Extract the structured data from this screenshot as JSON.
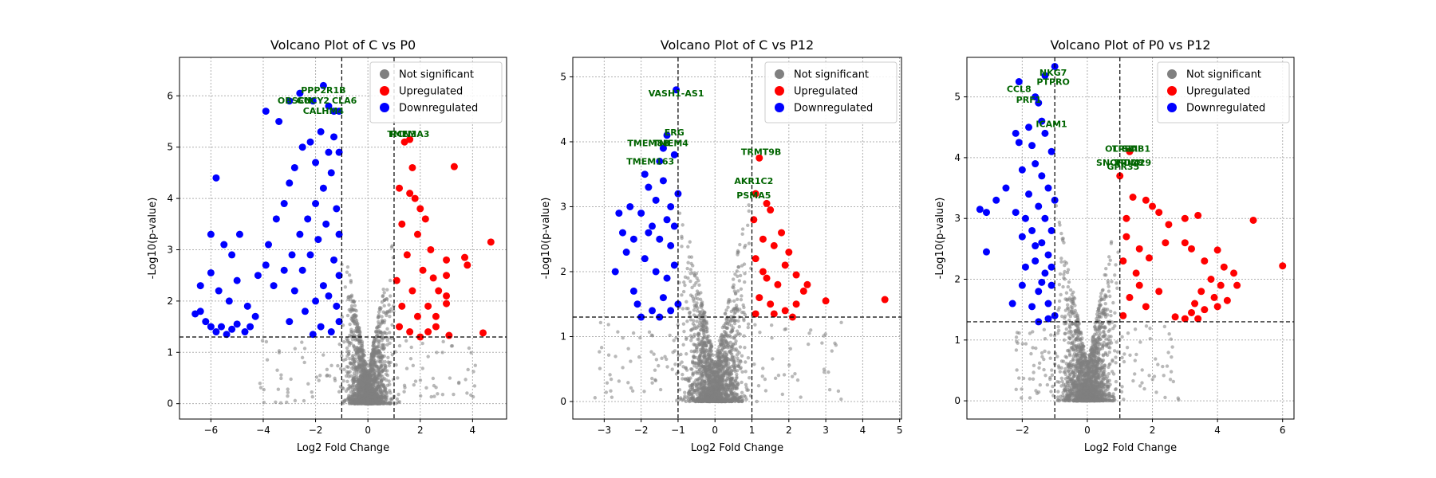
{
  "colors": {
    "not_significant": "#808080",
    "upregulated": "#ff0000",
    "downregulated": "#0000ff",
    "gene_label": "#006400"
  },
  "chart_data": [
    {
      "type": "scatter",
      "title": "Volcano Plot of C vs P0",
      "xlabel": "Log2 Fold Change",
      "ylabel": "-Log10(p-value)",
      "xlim": [
        -7.2,
        5.3
      ],
      "ylim": [
        -0.3,
        6.75
      ],
      "xticks": [
        -6,
        -4,
        -2,
        0,
        2,
        4
      ],
      "yticks": [
        0,
        1,
        2,
        3,
        4,
        5,
        6
      ],
      "grid": true,
      "legend": "top-right",
      "legend_entries": [
        "Not significant",
        "Upregulated",
        "Downregulated"
      ],
      "fc_thresholds": [
        -1,
        1
      ],
      "p_threshold": 1.3,
      "background_spread": {
        "xmin": -4.2,
        "xmax": 4.2,
        "ymax": 5.8
      },
      "upregulated": [
        [
          1.4,
          5.1
        ],
        [
          1.6,
          5.15
        ],
        [
          3.3,
          4.62
        ],
        [
          1.7,
          4.6
        ],
        [
          4.7,
          3.15
        ],
        [
          3.7,
          2.85
        ],
        [
          3.8,
          2.7
        ],
        [
          3.0,
          2.8
        ],
        [
          3.0,
          2.5
        ],
        [
          2.7,
          2.2
        ],
        [
          3.0,
          2.1
        ],
        [
          3.0,
          1.95
        ],
        [
          2.6,
          1.7
        ],
        [
          2.6,
          1.5
        ],
        [
          4.4,
          1.38
        ],
        [
          3.1,
          1.33
        ],
        [
          2.3,
          1.4
        ],
        [
          1.2,
          4.2
        ],
        [
          1.6,
          4.1
        ],
        [
          1.8,
          4.0
        ],
        [
          2.0,
          3.8
        ],
        [
          2.2,
          3.6
        ],
        [
          1.3,
          3.5
        ],
        [
          1.9,
          3.3
        ],
        [
          2.4,
          3.0
        ],
        [
          1.5,
          2.9
        ],
        [
          2.1,
          2.6
        ],
        [
          1.1,
          2.4
        ],
        [
          1.7,
          2.2
        ],
        [
          2.5,
          2.45
        ],
        [
          1.3,
          1.9
        ],
        [
          1.9,
          1.7
        ],
        [
          2.3,
          1.9
        ],
        [
          1.2,
          1.5
        ],
        [
          1.6,
          1.4
        ],
        [
          2.0,
          1.3
        ]
      ],
      "downregulated": [
        [
          -6.6,
          1.75
        ],
        [
          -6.4,
          1.8
        ],
        [
          -6.2,
          1.6
        ],
        [
          -6.0,
          1.5
        ],
        [
          -5.8,
          1.4
        ],
        [
          -5.6,
          1.5
        ],
        [
          -5.4,
          1.35
        ],
        [
          -5.2,
          1.45
        ],
        [
          -5.0,
          1.55
        ],
        [
          -4.7,
          1.4
        ],
        [
          -4.5,
          1.5
        ],
        [
          -6.4,
          2.3
        ],
        [
          -6.0,
          2.55
        ],
        [
          -5.7,
          2.2
        ],
        [
          -5.3,
          2.0
        ],
        [
          -5.0,
          2.4
        ],
        [
          -4.6,
          1.9
        ],
        [
          -4.3,
          1.7
        ],
        [
          -6.0,
          3.3
        ],
        [
          -5.5,
          3.1
        ],
        [
          -5.2,
          2.9
        ],
        [
          -4.9,
          3.3
        ],
        [
          -5.8,
          4.4
        ],
        [
          -4.2,
          2.5
        ],
        [
          -3.9,
          2.7
        ],
        [
          -3.9,
          5.7
        ],
        [
          -3.4,
          5.5
        ],
        [
          -3.0,
          5.9
        ],
        [
          -2.6,
          6.05
        ],
        [
          -2.1,
          5.9
        ],
        [
          -1.7,
          6.2
        ],
        [
          -1.5,
          5.8
        ],
        [
          -1.3,
          5.7
        ],
        [
          -1.1,
          5.7
        ],
        [
          -3.8,
          3.1
        ],
        [
          -3.5,
          3.6
        ],
        [
          -3.2,
          3.9
        ],
        [
          -3.0,
          4.3
        ],
        [
          -2.8,
          4.6
        ],
        [
          -2.5,
          5.0
        ],
        [
          -2.2,
          5.1
        ],
        [
          -2.0,
          4.7
        ],
        [
          -1.8,
          5.3
        ],
        [
          -1.5,
          4.9
        ],
        [
          -1.3,
          5.2
        ],
        [
          -1.1,
          4.9
        ],
        [
          -3.6,
          2.3
        ],
        [
          -3.2,
          2.6
        ],
        [
          -2.9,
          2.9
        ],
        [
          -2.6,
          3.3
        ],
        [
          -2.3,
          3.6
        ],
        [
          -2.0,
          3.9
        ],
        [
          -1.7,
          4.2
        ],
        [
          -1.4,
          4.5
        ],
        [
          -1.2,
          3.8
        ],
        [
          -1.1,
          3.3
        ],
        [
          -2.8,
          2.2
        ],
        [
          -2.5,
          2.6
        ],
        [
          -2.2,
          2.9
        ],
        [
          -1.9,
          3.2
        ],
        [
          -1.6,
          3.5
        ],
        [
          -1.3,
          2.8
        ],
        [
          -1.1,
          2.5
        ],
        [
          -2.4,
          1.8
        ],
        [
          -2.0,
          2.0
        ],
        [
          -1.7,
          2.3
        ],
        [
          -1.5,
          2.1
        ],
        [
          -1.2,
          1.9
        ],
        [
          -1.1,
          1.6
        ],
        [
          -1.8,
          1.5
        ],
        [
          -1.4,
          1.4
        ],
        [
          -2.1,
          1.35
        ],
        [
          -3.0,
          1.6
        ]
      ],
      "labels": [
        {
          "text": "PPP2R1B",
          "x": -1.7,
          "y": 6.05
        },
        {
          "text": "OBSCN",
          "x": -2.8,
          "y": 5.85
        },
        {
          "text": "GUCY2",
          "x": -2.1,
          "y": 5.85
        },
        {
          "text": "CLA6",
          "x": -0.9,
          "y": 5.85
        },
        {
          "text": "CALHM4",
          "x": -1.7,
          "y": 5.65
        },
        {
          "text": "RCN3A3",
          "x": 1.6,
          "y": 5.2
        },
        {
          "text": "TMEM",
          "x": 1.3,
          "y": 5.2
        }
      ]
    },
    {
      "type": "scatter",
      "title": "Volcano Plot of C vs P12",
      "xlabel": "Log2 Fold Change",
      "ylabel": "-Log10(p-value)",
      "xlim": [
        -3.85,
        5.05
      ],
      "ylim": [
        -0.27,
        5.3
      ],
      "xticks": [
        -3,
        -2,
        -1,
        0,
        1,
        2,
        3,
        4,
        5
      ],
      "yticks": [
        0,
        1,
        2,
        3,
        4,
        5
      ],
      "grid": true,
      "legend": "top-right",
      "legend_entries": [
        "Not significant",
        "Upregulated",
        "Downregulated"
      ],
      "fc_thresholds": [
        -1,
        1
      ],
      "p_threshold": 1.3,
      "background_spread": {
        "xmin": -3.3,
        "xmax": 3.5,
        "ymax": 5.0
      },
      "upregulated": [
        [
          1.2,
          3.75
        ],
        [
          1.1,
          3.2
        ],
        [
          1.4,
          3.05
        ],
        [
          1.5,
          2.95
        ],
        [
          2.0,
          2.3
        ],
        [
          1.9,
          2.1
        ],
        [
          2.2,
          1.95
        ],
        [
          2.5,
          1.8
        ],
        [
          2.4,
          1.7
        ],
        [
          1.3,
          2.5
        ],
        [
          1.6,
          2.4
        ],
        [
          1.1,
          2.2
        ],
        [
          1.4,
          1.9
        ],
        [
          1.7,
          1.8
        ],
        [
          1.2,
          1.6
        ],
        [
          1.5,
          1.5
        ],
        [
          1.9,
          1.4
        ],
        [
          2.2,
          1.5
        ],
        [
          3.0,
          1.55
        ],
        [
          4.6,
          1.57
        ],
        [
          1.1,
          1.35
        ],
        [
          1.6,
          1.35
        ],
        [
          2.1,
          1.3
        ],
        [
          1.3,
          2.0
        ],
        [
          1.8,
          2.6
        ],
        [
          1.05,
          2.8
        ]
      ],
      "downregulated": [
        [
          -1.05,
          4.8
        ],
        [
          -1.3,
          4.1
        ],
        [
          -1.4,
          3.9
        ],
        [
          -1.1,
          3.8
        ],
        [
          -1.9,
          3.5
        ],
        [
          -2.3,
          3.0
        ],
        [
          -2.6,
          2.9
        ],
        [
          -2.0,
          2.9
        ],
        [
          -2.5,
          2.6
        ],
        [
          -2.7,
          2.0
        ],
        [
          -2.4,
          2.3
        ],
        [
          -2.2,
          1.7
        ],
        [
          -1.8,
          3.3
        ],
        [
          -1.6,
          3.1
        ],
        [
          -1.4,
          3.4
        ],
        [
          -1.2,
          3.0
        ],
        [
          -1.8,
          2.6
        ],
        [
          -1.5,
          2.5
        ],
        [
          -1.2,
          2.4
        ],
        [
          -1.1,
          2.7
        ],
        [
          -1.9,
          2.2
        ],
        [
          -1.6,
          2.0
        ],
        [
          -1.3,
          1.9
        ],
        [
          -1.1,
          2.1
        ],
        [
          -2.1,
          1.5
        ],
        [
          -1.7,
          1.4
        ],
        [
          -1.4,
          1.6
        ],
        [
          -1.2,
          1.4
        ],
        [
          -2.0,
          1.3
        ],
        [
          -1.5,
          1.3
        ],
        [
          -1.0,
          1.5
        ],
        [
          -1.3,
          2.8
        ],
        [
          -1.7,
          2.7
        ],
        [
          -2.2,
          2.5
        ],
        [
          -1.0,
          3.2
        ],
        [
          -1.5,
          3.7
        ]
      ],
      "labels": [
        {
          "text": "VASH1-AS1",
          "x": -1.05,
          "y": 4.7
        },
        {
          "text": "ERG",
          "x": -1.1,
          "y": 4.1
        },
        {
          "text": "TMEM8B",
          "x": -1.8,
          "y": 3.93
        },
        {
          "text": "TMEM4",
          "x": -1.2,
          "y": 3.93
        },
        {
          "text": "TMEM163",
          "x": -1.75,
          "y": 3.65
        },
        {
          "text": "TRMT9B",
          "x": 1.25,
          "y": 3.8
        },
        {
          "text": "AKR1C2",
          "x": 1.05,
          "y": 3.35
        },
        {
          "text": "PSMA5",
          "x": 1.05,
          "y": 3.13
        }
      ]
    },
    {
      "type": "scatter",
      "title": "Volcano Plot of P0 vs P12",
      "xlabel": "Log2 Fold Change",
      "ylabel": "-Log10(p-value)",
      "xlim": [
        -3.7,
        6.35
      ],
      "ylim": [
        -0.3,
        5.65
      ],
      "xticks": [
        -2,
        0,
        2,
        4,
        6
      ],
      "yticks": [
        0,
        1,
        2,
        3,
        4,
        5
      ],
      "grid": true,
      "legend": "top-right",
      "legend_entries": [
        "Not significant",
        "Upregulated",
        "Downregulated"
      ],
      "fc_thresholds": [
        -1,
        1
      ],
      "p_threshold": 1.3,
      "background_spread": {
        "xmin": -2.2,
        "xmax": 3.0,
        "ymax": 5.2
      },
      "upregulated": [
        [
          1.3,
          4.1
        ],
        [
          1.0,
          3.7
        ],
        [
          1.4,
          3.35
        ],
        [
          1.8,
          3.3
        ],
        [
          2.0,
          3.2
        ],
        [
          2.2,
          3.1
        ],
        [
          2.5,
          2.9
        ],
        [
          3.0,
          3.0
        ],
        [
          3.4,
          3.05
        ],
        [
          5.1,
          2.97
        ],
        [
          6.0,
          2.22
        ],
        [
          3.0,
          2.6
        ],
        [
          3.2,
          2.5
        ],
        [
          4.0,
          2.48
        ],
        [
          3.6,
          2.3
        ],
        [
          4.2,
          2.2
        ],
        [
          4.5,
          2.1
        ],
        [
          3.8,
          2.0
        ],
        [
          4.1,
          1.9
        ],
        [
          4.6,
          1.9
        ],
        [
          3.5,
          1.8
        ],
        [
          3.9,
          1.7
        ],
        [
          4.3,
          1.65
        ],
        [
          4.0,
          1.55
        ],
        [
          3.6,
          1.5
        ],
        [
          3.2,
          1.45
        ],
        [
          3.4,
          1.35
        ],
        [
          3.0,
          1.35
        ],
        [
          2.7,
          1.38
        ],
        [
          3.3,
          1.6
        ],
        [
          1.2,
          2.7
        ],
        [
          1.6,
          2.5
        ],
        [
          1.1,
          2.3
        ],
        [
          1.5,
          2.1
        ],
        [
          2.2,
          1.8
        ],
        [
          1.3,
          1.7
        ],
        [
          1.8,
          1.55
        ],
        [
          1.1,
          1.4
        ],
        [
          1.6,
          1.9
        ],
        [
          2.4,
          2.6
        ],
        [
          1.2,
          3.0
        ],
        [
          1.9,
          2.35
        ]
      ],
      "downregulated": [
        [
          -1.0,
          5.5
        ],
        [
          -1.3,
          5.35
        ],
        [
          -2.1,
          5.25
        ],
        [
          -1.6,
          5.0
        ],
        [
          -1.5,
          4.9
        ],
        [
          -1.4,
          4.6
        ],
        [
          -2.2,
          4.4
        ],
        [
          -2.1,
          4.25
        ],
        [
          -2.0,
          3.8
        ],
        [
          -2.5,
          3.5
        ],
        [
          -2.8,
          3.3
        ],
        [
          -3.3,
          3.15
        ],
        [
          -3.1,
          3.1
        ],
        [
          -2.2,
          3.1
        ],
        [
          -2.0,
          2.7
        ],
        [
          -3.1,
          2.45
        ],
        [
          -1.9,
          2.2
        ],
        [
          -2.0,
          1.9
        ],
        [
          -2.3,
          1.6
        ],
        [
          -1.5,
          1.3
        ],
        [
          -1.8,
          4.5
        ],
        [
          -1.7,
          4.2
        ],
        [
          -1.6,
          3.9
        ],
        [
          -1.4,
          3.7
        ],
        [
          -1.2,
          3.5
        ],
        [
          -1.8,
          3.4
        ],
        [
          -1.5,
          3.2
        ],
        [
          -1.3,
          3.0
        ],
        [
          -1.1,
          2.8
        ],
        [
          -1.7,
          2.8
        ],
        [
          -1.4,
          2.6
        ],
        [
          -1.2,
          2.4
        ],
        [
          -1.6,
          2.3
        ],
        [
          -1.3,
          2.1
        ],
        [
          -1.1,
          1.9
        ],
        [
          -1.5,
          1.8
        ],
        [
          -1.2,
          1.6
        ],
        [
          -1.0,
          1.4
        ],
        [
          -1.1,
          4.1
        ],
        [
          -1.3,
          4.4
        ],
        [
          -1.0,
          3.3
        ],
        [
          -1.9,
          3.0
        ],
        [
          -1.6,
          2.55
        ],
        [
          -1.1,
          2.2
        ],
        [
          -1.4,
          1.95
        ],
        [
          -1.7,
          1.55
        ],
        [
          -1.2,
          1.35
        ]
      ],
      "labels": [
        {
          "text": "NKG7",
          "x": -1.05,
          "y": 5.35
        },
        {
          "text": "PTPRO",
          "x": -1.05,
          "y": 5.2
        },
        {
          "text": "CCL8",
          "x": -2.1,
          "y": 5.08
        },
        {
          "text": "PRF1",
          "x": -1.8,
          "y": 4.9
        },
        {
          "text": "ICAM1",
          "x": -1.1,
          "y": 4.5
        },
        {
          "text": "OLIG2",
          "x": 1.0,
          "y": 4.1
        },
        {
          "text": "SKI",
          "x": 1.3,
          "y": 4.1
        },
        {
          "text": "TPSAB1",
          "x": 1.35,
          "y": 4.1
        },
        {
          "text": "SNORD28",
          "x": 1.0,
          "y": 3.87
        },
        {
          "text": "TRIM29",
          "x": 1.4,
          "y": 3.87
        },
        {
          "text": "GPR35",
          "x": 1.1,
          "y": 3.8
        }
      ]
    }
  ]
}
